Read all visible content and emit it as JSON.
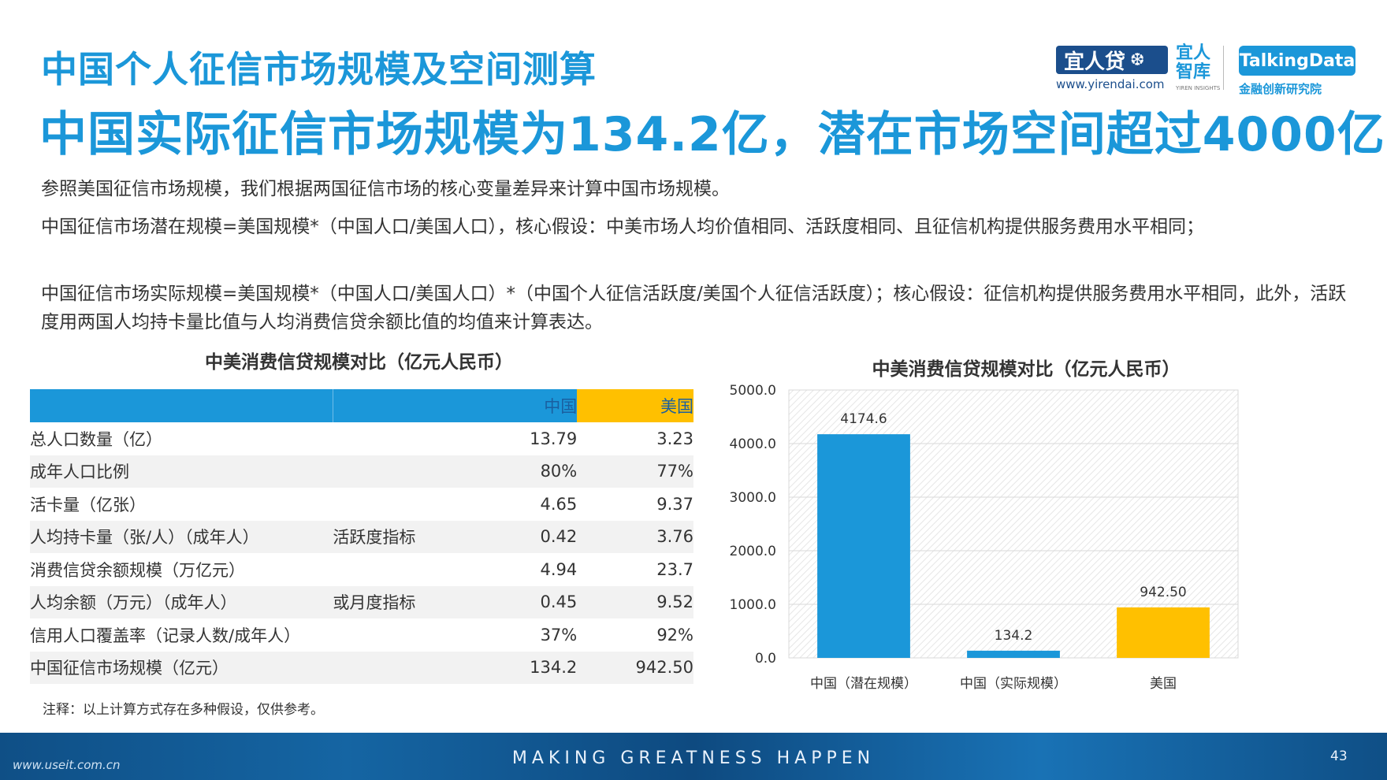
{
  "header": {
    "title": "中国个人征信市场规模及空间测算",
    "headline": "中国实际征信市场规模为134.2亿，潜在市场空间超过4000亿"
  },
  "logos": {
    "yirendai": "宜人贷",
    "yirendai_url": "www.yirendai.com",
    "yiren_insights": "宜人智库",
    "yiren_insights_en": "YIREN INSIGHTS",
    "talkingdata": "TalkingData",
    "talkingdata_sub": "金融创新研究院"
  },
  "body": {
    "p1": "参照美国征信市场规模，我们根据两国征信市场的核心变量差异来计算中国市场规模。",
    "p2": "中国征信市场潜在规模=美国规模*（中国人口/美国人口），核心假设：中美市场人均价值相同、活跃度相同、且征信机构提供服务费用水平相同；",
    "p3": "中国征信市场实际规模=美国规模*（中国人口/美国人口）*（中国个人征信活跃度/美国个人征信活跃度）；核心假设：征信机构提供服务费用水平相同，此外，活跃度用两国人均持卡量比值与人均消费信贷余额比值的均值来计算表达。"
  },
  "table": {
    "title": "中美消费信贷规模对比（亿元人民币）",
    "headers": [
      "",
      "",
      "中国",
      "美国"
    ],
    "rows": [
      [
        "总人口数量（亿）",
        "",
        "13.79",
        "3.23"
      ],
      [
        "成年人口比例",
        "",
        "80%",
        "77%"
      ],
      [
        "活卡量（亿张）",
        "",
        "4.65",
        "9.37"
      ],
      [
        "人均持卡量（张/人）（成年人）",
        "活跃度指标",
        "0.42",
        "3.76"
      ],
      [
        "消费信贷余额规模（万亿元）",
        "",
        "4.94",
        "23.7"
      ],
      [
        "人均余额（万元）（成年人）",
        "或月度指标",
        "0.45",
        "9.52"
      ],
      [
        "信用人口覆盖率（记录人数/成年人）",
        "",
        "37%",
        "92%"
      ],
      [
        "中国征信市场规模（亿元）",
        "",
        "134.2",
        "942.50"
      ]
    ],
    "note": "注释：以上计算方式存在多种假设，仅供参考。"
  },
  "chart_data": {
    "type": "bar",
    "title": "中美消费信贷规模对比（亿元人民币）",
    "categories": [
      "中国（潜在规模）",
      "中国（实际规模）",
      "美国"
    ],
    "values": [
      4174.6,
      134.2,
      942.5
    ],
    "labels": [
      "4174.6",
      "134.2",
      "942.50"
    ],
    "colors": [
      "#1b97d9",
      "#1b97d9",
      "#ffc000"
    ],
    "ylim": [
      0,
      5000
    ],
    "yticks": [
      "0.0",
      "1000.0",
      "2000.0",
      "3000.0",
      "4000.0",
      "5000.0"
    ],
    "grid": true,
    "xlabel": "",
    "ylabel": ""
  },
  "footer": {
    "slogan": "MAKING GREATNESS HAPPEN",
    "page_number": "43",
    "watermark": "www.useit.com.cn"
  }
}
